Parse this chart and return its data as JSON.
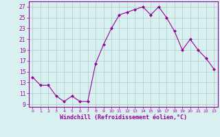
{
  "hours": [
    0,
    1,
    2,
    3,
    4,
    5,
    6,
    7,
    8,
    9,
    10,
    11,
    12,
    13,
    14,
    15,
    16,
    17,
    18,
    19,
    20,
    21,
    22,
    23
  ],
  "values": [
    14,
    12.5,
    12.5,
    10.5,
    9.5,
    10.5,
    9.5,
    9.5,
    16.5,
    20,
    23,
    25.5,
    26,
    26.5,
    27,
    25.5,
    27,
    25,
    22.5,
    19,
    21,
    19,
    17.5,
    15.5
  ],
  "line_color": "#990099",
  "marker": "D",
  "marker_size": 2,
  "bg_color": "#d8f0f0",
  "grid_color": "#b0c8c8",
  "xlabel": "Windchill (Refroidissement éolien,°C)",
  "xlabel_color": "#990099",
  "yticks": [
    9,
    11,
    13,
    15,
    17,
    19,
    21,
    23,
    25,
    27
  ],
  "ytick_labels": [
    "9",
    "11",
    "13",
    "15",
    "17",
    "19",
    "21",
    "23",
    "25",
    "27"
  ],
  "xticks": [
    0,
    1,
    2,
    3,
    4,
    5,
    6,
    7,
    8,
    9,
    10,
    11,
    12,
    13,
    14,
    15,
    16,
    17,
    18,
    19,
    20,
    21,
    22,
    23
  ],
  "xtick_labels": [
    "0",
    "1",
    "2",
    "3",
    "4",
    "5",
    "6",
    "7",
    "8",
    "9",
    "10",
    "11",
    "12",
    "13",
    "14",
    "15",
    "16",
    "17",
    "18",
    "19",
    "20",
    "21",
    "22",
    "23"
  ],
  "ylim": [
    8.5,
    28
  ],
  "xlim": [
    -0.5,
    23.5
  ],
  "tick_label_color": "#990099",
  "spine_color": "#990099"
}
